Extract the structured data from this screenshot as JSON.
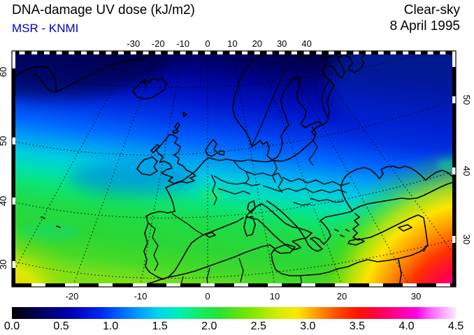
{
  "header": {
    "title": "DNA-damage UV dose (kJ/m2)",
    "source": "MSR - KNMI",
    "source_color": "#0000cc",
    "condition": "Clear-sky",
    "date": "8 April 1995"
  },
  "map": {
    "axes": {
      "top": [
        "-30",
        "-20",
        "-10",
        "0",
        "10",
        "20",
        "30",
        "40"
      ],
      "bottom": [
        "-20",
        "-10",
        "0",
        "10",
        "20",
        "30"
      ],
      "left": [
        "60",
        "50",
        "40",
        "30"
      ],
      "right": [
        "50",
        "40",
        "30"
      ]
    }
  },
  "colorbar": {
    "min": 0.0,
    "max": 4.5,
    "labels": [
      "0.0",
      "0.5",
      "1.0",
      "1.5",
      "2.0",
      "2.5",
      "3.0",
      "3.5",
      "4.0",
      "4.5"
    ],
    "stops": [
      {
        "value": 0.0,
        "color": "#000000"
      },
      {
        "value": 0.3,
        "color": "#000064"
      },
      {
        "value": 0.6,
        "color": "#0000b4"
      },
      {
        "value": 0.9,
        "color": "#0028f0"
      },
      {
        "value": 1.1,
        "color": "#0064ff"
      },
      {
        "value": 1.3,
        "color": "#00a0ff"
      },
      {
        "value": 1.5,
        "color": "#00d8e8"
      },
      {
        "value": 1.7,
        "color": "#00f0b4"
      },
      {
        "value": 1.9,
        "color": "#14ec64"
      },
      {
        "value": 2.1,
        "color": "#28e232"
      },
      {
        "value": 2.4,
        "color": "#78e600"
      },
      {
        "value": 2.7,
        "color": "#d2ee00"
      },
      {
        "value": 2.9,
        "color": "#ffe600"
      },
      {
        "value": 3.1,
        "color": "#ff9600"
      },
      {
        "value": 3.3,
        "color": "#ff4b00"
      },
      {
        "value": 3.5,
        "color": "#ff1400"
      },
      {
        "value": 3.7,
        "color": "#ff0046"
      },
      {
        "value": 3.9,
        "color": "#ff0096"
      },
      {
        "value": 4.1,
        "color": "#ff00e6"
      },
      {
        "value": 4.25,
        "color": "#ff64ff"
      },
      {
        "value": 4.4,
        "color": "#ffb4ff"
      },
      {
        "value": 4.5,
        "color": "#ffe6ff"
      }
    ]
  },
  "chart_data": {
    "type": "heatmap",
    "title": "DNA-damage UV dose (kJ/m2)",
    "source": "MSR - KNMI",
    "condition": "Clear-sky",
    "date": "8 April 1995",
    "units": "kJ/m2",
    "region": "Europe / North Atlantic / North Africa",
    "colorbar_range": [
      0.0,
      4.5
    ],
    "colorbar_ticks": [
      0.0,
      0.5,
      1.0,
      1.5,
      2.0,
      2.5,
      3.0,
      3.5,
      4.0,
      4.5
    ],
    "x_axis": {
      "name": "longitude_deg",
      "top_ticks": [
        -30,
        -20,
        -10,
        0,
        10,
        20,
        30,
        40
      ],
      "bottom_ticks": [
        -20,
        -10,
        0,
        10,
        20,
        30
      ]
    },
    "y_axis": {
      "name": "latitude_deg",
      "left_ticks": [
        60,
        50,
        40,
        30
      ],
      "right_ticks": [
        50,
        40,
        30
      ]
    },
    "grid": "dotted graticule every 10 degrees",
    "field_estimates_by_latitude": [
      {
        "lat": 65,
        "uv_dose": 0.6
      },
      {
        "lat": 60,
        "uv_dose": 0.9
      },
      {
        "lat": 55,
        "uv_dose": 1.2
      },
      {
        "lat": 50,
        "uv_dose": 1.5
      },
      {
        "lat": 45,
        "uv_dose": 1.9
      },
      {
        "lat": 40,
        "uv_dose": 2.2
      },
      {
        "lat": 35,
        "uv_dose": 2.6
      },
      {
        "lat": 30,
        "uv_dose": 3.4
      }
    ],
    "max_region": {
      "location": "southeast corner (North Africa / Middle East)",
      "uv_dose": 4.3
    },
    "min_region": {
      "location": "northwest (Greenland / Arctic)",
      "uv_dose": 0.4
    }
  }
}
